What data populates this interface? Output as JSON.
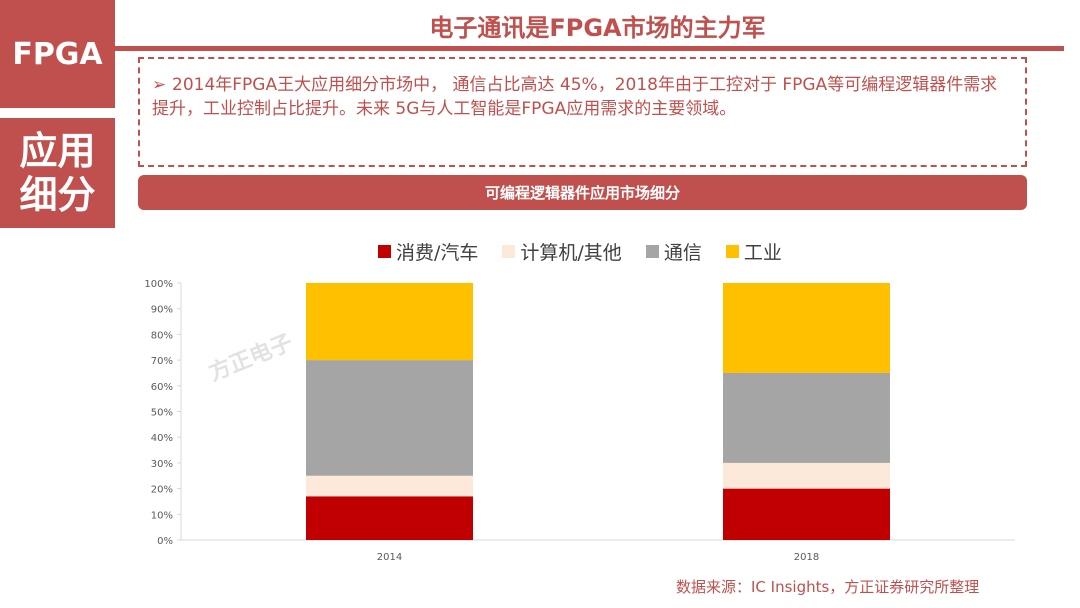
{
  "side": {
    "badge_top": "FPGA",
    "badge_bottom": "应用细分"
  },
  "header": {
    "title": "电子通讯是FPGA市场的主力军"
  },
  "bullet": {
    "arrow": "➢",
    "text": "2014年FPGA王大应用细分市场中， 通信占比高达 45%，2018年由于工控对于 FPGA等可编程逻辑器件需求提升，工业控制占比提升。未来 5G与人工智能是FPGA应用需求的主要领域。"
  },
  "section": {
    "title": "可编程逻辑器件应用市场细分"
  },
  "watermark": "方正电子",
  "source": "数据来源：IC Insights，方正证券研究所整理",
  "chart_data": {
    "type": "bar",
    "stacked": true,
    "categories": [
      "2014",
      "2018"
    ],
    "series": [
      {
        "name": "消费/汽车",
        "color": "#c00000",
        "values": [
          17,
          20
        ]
      },
      {
        "name": "计算机/其他",
        "color": "#fde9d9",
        "values": [
          8,
          10
        ]
      },
      {
        "name": "通信",
        "color": "#a5a5a5",
        "values": [
          45,
          35
        ]
      },
      {
        "name": "工业",
        "color": "#ffc000",
        "values": [
          30,
          35
        ]
      }
    ],
    "ylim": [
      0,
      100
    ],
    "yticks": [
      "0%",
      "10%",
      "20%",
      "30%",
      "40%",
      "50%",
      "60%",
      "70%",
      "80%",
      "90%",
      "100%"
    ],
    "legend_position": "top"
  }
}
